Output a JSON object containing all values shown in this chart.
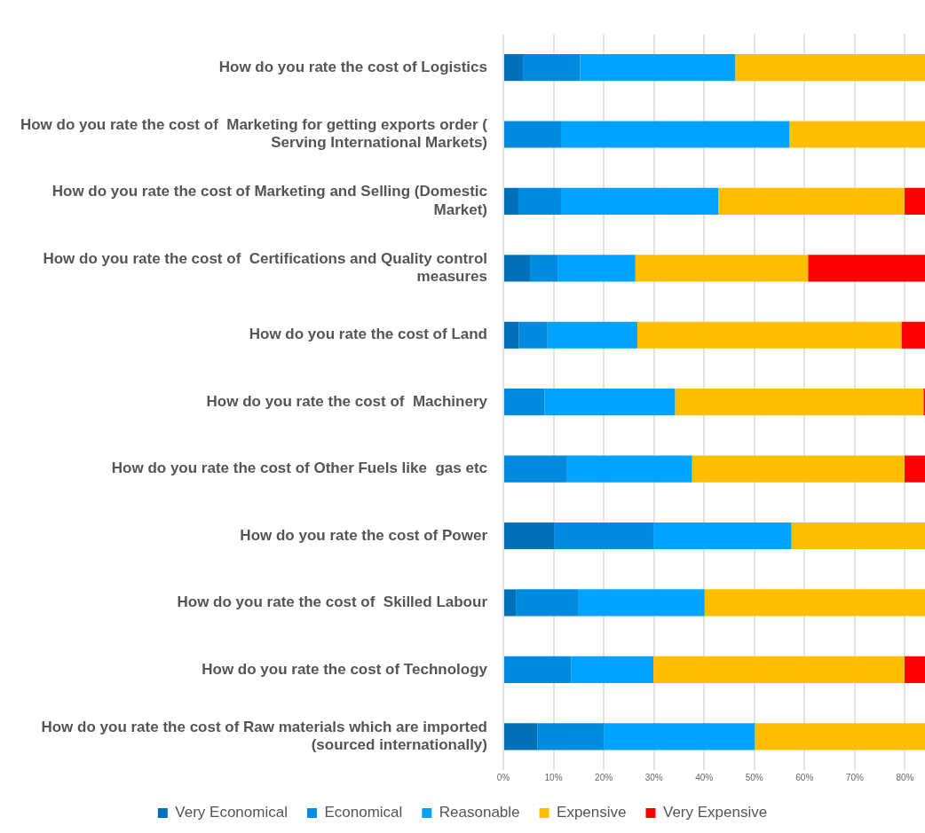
{
  "chart_data": {
    "type": "bar",
    "orientation": "horizontal",
    "stacked": true,
    "categories": [
      "How do you rate the cost of Logistics",
      "How do you rate the cost of  Marketing for getting exports order ( Serving International Markets)",
      "How do you rate the cost of Marketing and Selling (Domestic Market)",
      "How do you rate the cost of  Certifications and Quality control measures",
      "How do you rate the cost of Land",
      "How do you rate the cost of  Machinery",
      "How do you rate the cost of Other Fuels like  gas etc",
      "How do you rate the cost of Power",
      "How do you rate the cost of  Skilled Labour",
      "How do you rate the cost of Technology",
      "How do you rate the cost of Raw materials which are imported (sourced internationally)"
    ],
    "series": [
      {
        "name": "Very Economical",
        "color": "#0071b9",
        "values": [
          3.9,
          0,
          3.0,
          5.3,
          3.1,
          0,
          0,
          10.1,
          2.5,
          0,
          6.8
        ]
      },
      {
        "name": "Economical",
        "color": "#008ae0",
        "values": [
          11.4,
          11.5,
          8.5,
          5.5,
          5.7,
          8.2,
          12.7,
          19.8,
          12.5,
          13.5,
          13.2
        ]
      },
      {
        "name": "Reasonable",
        "color": "#00a3ff",
        "values": [
          30.9,
          45.5,
          31.3,
          15.5,
          17.9,
          26.0,
          24.9,
          27.5,
          25.1,
          16.4,
          30.1
        ]
      },
      {
        "name": "Expensive",
        "color": "#ffbf00",
        "values": [
          37.8,
          27.0,
          37.1,
          34.4,
          52.6,
          49.5,
          42.3,
          26.6,
          43.9,
          50.0,
          33.9
        ]
      },
      {
        "name": "Very Expensive",
        "color": "#ff0000",
        "values": [
          null,
          null,
          4.1,
          23.3,
          4.7,
          0.3,
          4.1,
          null,
          null,
          4.1,
          null
        ]
      }
    ],
    "xlim": [
      0,
      84
    ],
    "xticks": [
      {
        "value": 0,
        "label": "0%"
      },
      {
        "value": 10,
        "label": "10%"
      },
      {
        "value": 20,
        "label": "20%"
      },
      {
        "value": 30,
        "label": "30%"
      },
      {
        "value": 40,
        "label": "40%"
      },
      {
        "value": 50,
        "label": "50%"
      },
      {
        "value": 60,
        "label": "60%"
      },
      {
        "value": 70,
        "label": "70%"
      },
      {
        "value": 80,
        "label": "80%"
      }
    ],
    "grid": "x",
    "legend": "bottom"
  }
}
